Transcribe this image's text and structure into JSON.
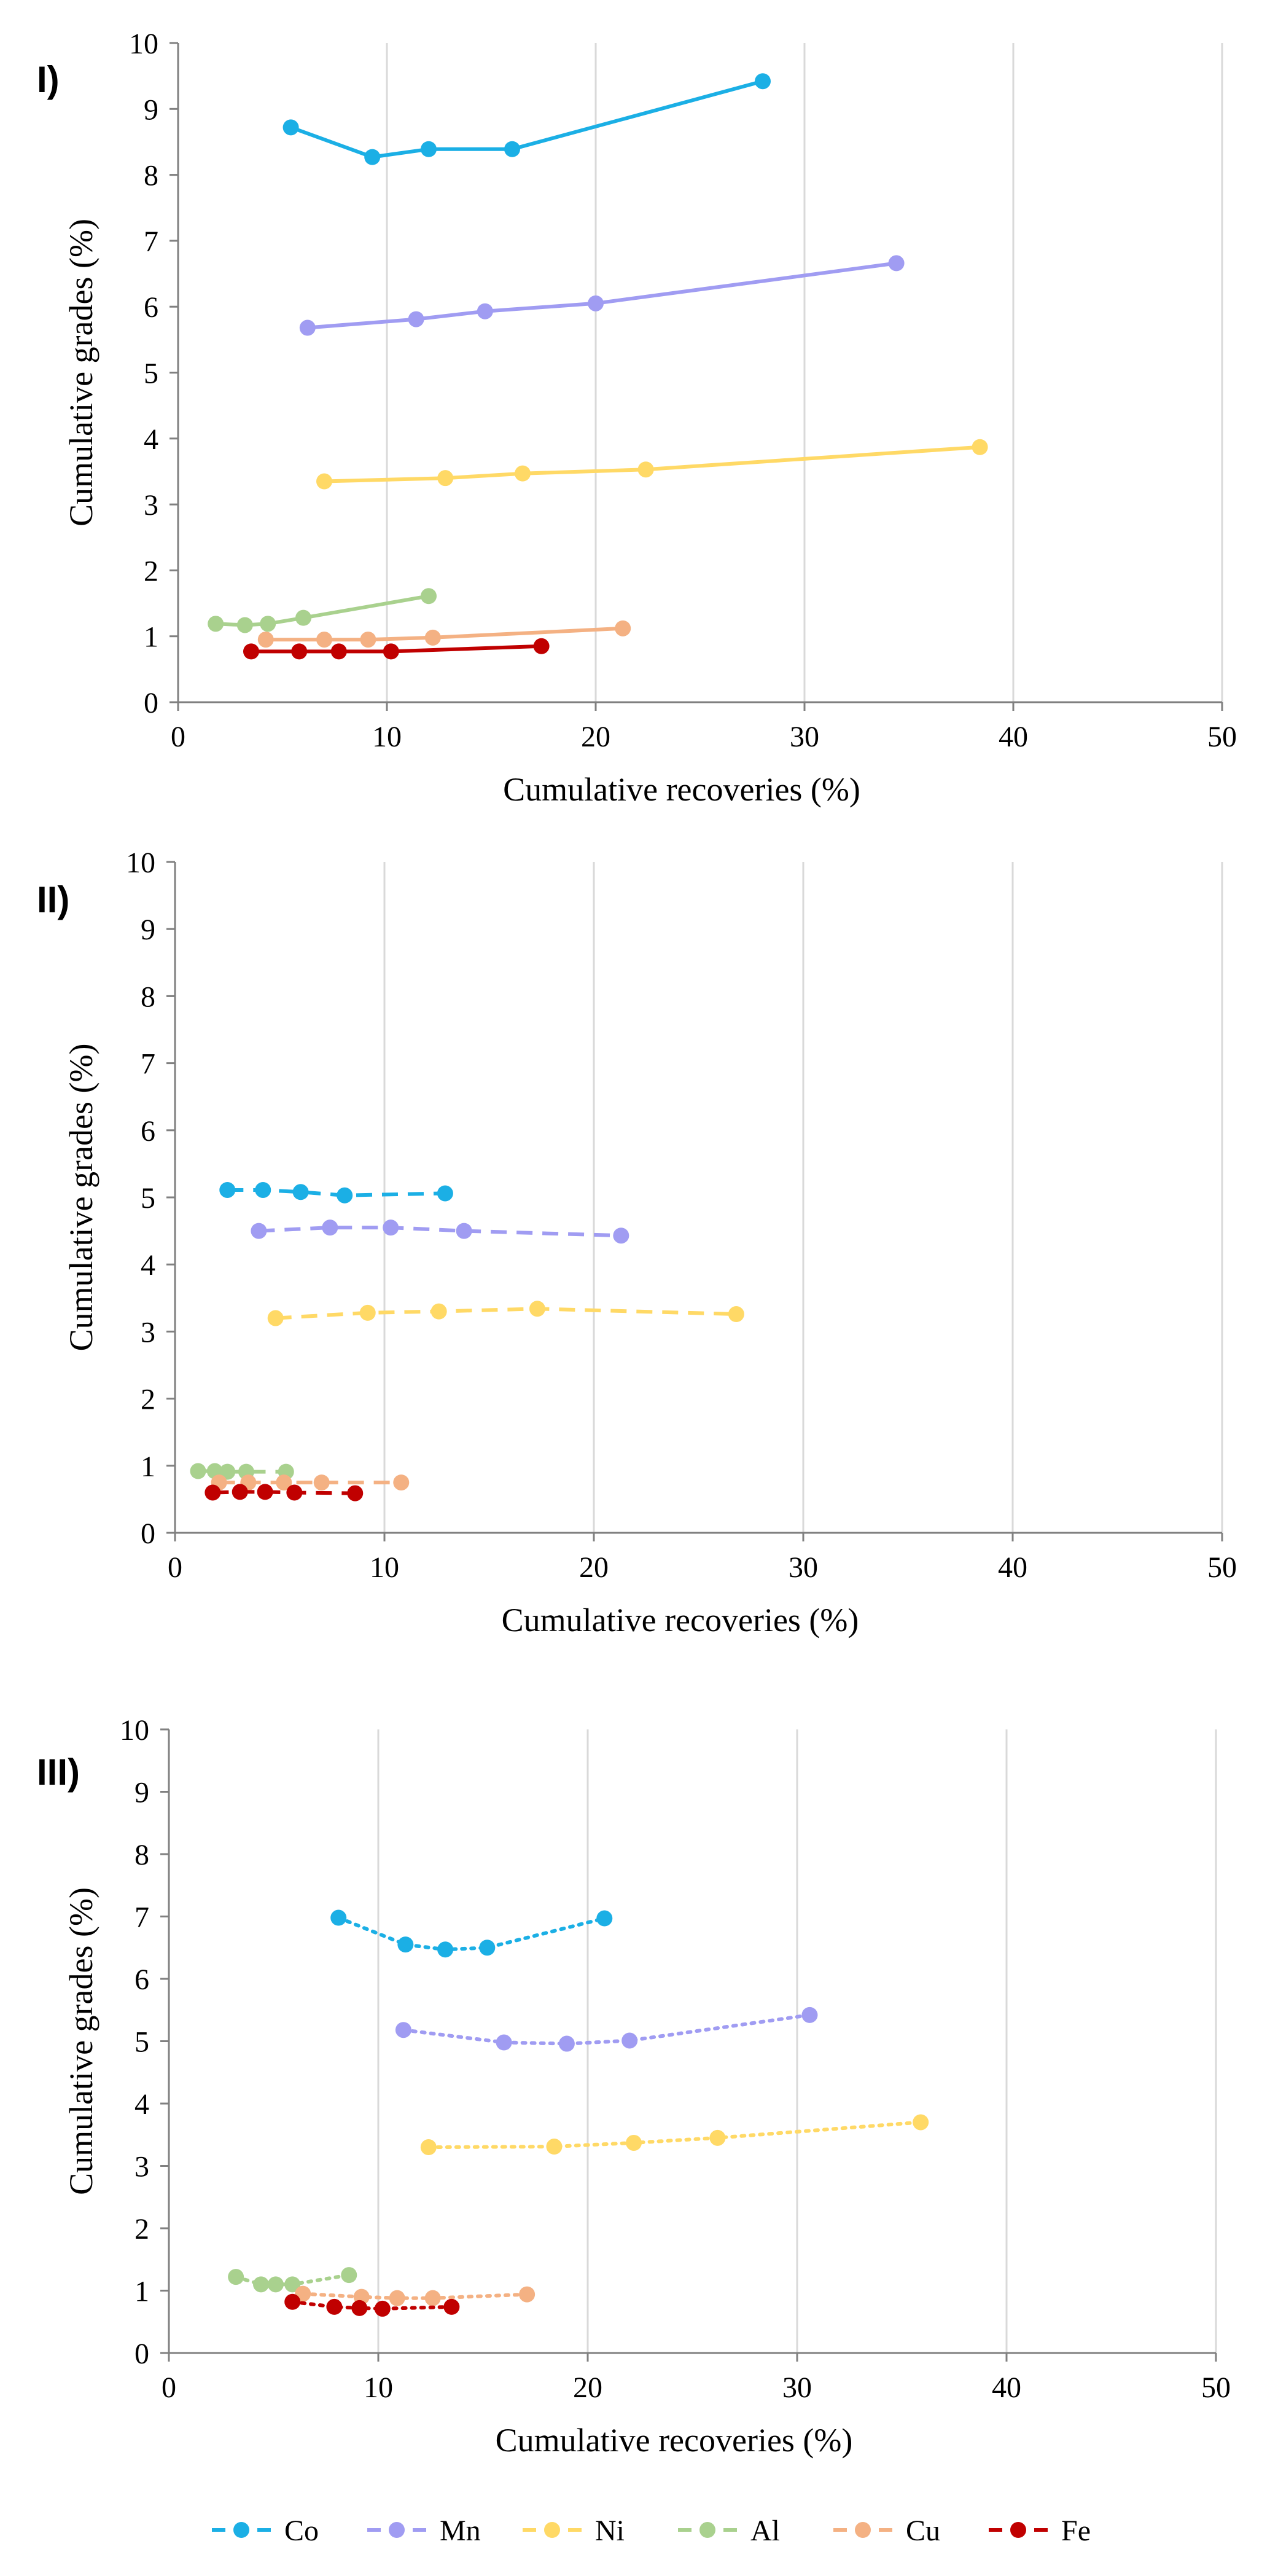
{
  "colors": {
    "Co": "#1BAFE5",
    "Mn": "#A09CF2",
    "Ni": "#FFD966",
    "Al": "#A9D18E",
    "Cu": "#F4B183",
    "Fe": "#C00000",
    "grid": "#D9D9D9",
    "axis": "#808080",
    "text": "#000000"
  },
  "legend": {
    "entries": [
      "Co",
      "Mn",
      "Ni",
      "Al",
      "Cu",
      "Fe"
    ],
    "placement": "bottom-center"
  },
  "chart_data": [
    {
      "type": "line",
      "panel_label": "I)",
      "line_style": "solid",
      "xlabel": "Cumulative recoveries (%)",
      "ylabel": "Cumulative grades (%)",
      "xlim": [
        0,
        50
      ],
      "ylim": [
        0,
        10
      ],
      "xticks": [
        "0",
        "10",
        "20",
        "30",
        "40",
        "50"
      ],
      "yticks": [
        "0",
        "1",
        "2",
        "3",
        "4",
        "5",
        "6",
        "7",
        "8",
        "9",
        "10"
      ],
      "grid": "vertical",
      "series": [
        {
          "name": "Co",
          "x": [
            5.4,
            9.3,
            12.0,
            16.0,
            28.0
          ],
          "y": [
            8.72,
            8.27,
            8.39,
            8.39,
            9.42
          ]
        },
        {
          "name": "Mn",
          "x": [
            6.2,
            11.4,
            14.7,
            20.0,
            34.4
          ],
          "y": [
            5.68,
            5.81,
            5.93,
            6.05,
            6.66
          ]
        },
        {
          "name": "Ni",
          "x": [
            7.0,
            12.8,
            16.5,
            22.4,
            38.4
          ],
          "y": [
            3.35,
            3.4,
            3.47,
            3.53,
            3.87
          ]
        },
        {
          "name": "Al",
          "x": [
            1.8,
            3.2,
            4.3,
            6.0,
            12.0
          ],
          "y": [
            1.19,
            1.17,
            1.19,
            1.28,
            1.61
          ]
        },
        {
          "name": "Cu",
          "x": [
            4.2,
            7.0,
            9.1,
            12.2,
            21.3
          ],
          "y": [
            0.95,
            0.95,
            0.95,
            0.98,
            1.12
          ]
        },
        {
          "name": "Fe",
          "x": [
            3.5,
            5.8,
            7.7,
            10.2,
            17.4
          ],
          "y": [
            0.77,
            0.77,
            0.77,
            0.77,
            0.85
          ]
        }
      ]
    },
    {
      "type": "line",
      "panel_label": "II)",
      "line_style": "dashed",
      "xlabel": "Cumulative recoveries (%)",
      "ylabel": "Cumulative grades (%)",
      "xlim": [
        0,
        50
      ],
      "ylim": [
        0,
        10
      ],
      "xticks": [
        "0",
        "10",
        "20",
        "30",
        "40",
        "50"
      ],
      "yticks": [
        "0",
        "1",
        "2",
        "3",
        "4",
        "5",
        "6",
        "7",
        "8",
        "9",
        "10"
      ],
      "grid": "vertical",
      "series": [
        {
          "name": "Co",
          "x": [
            2.5,
            4.2,
            6.0,
            8.1,
            12.9
          ],
          "y": [
            5.11,
            5.11,
            5.08,
            5.03,
            5.06
          ]
        },
        {
          "name": "Mn",
          "x": [
            4.0,
            7.4,
            10.3,
            13.8,
            21.3
          ],
          "y": [
            4.5,
            4.55,
            4.55,
            4.5,
            4.43
          ]
        },
        {
          "name": "Ni",
          "x": [
            4.8,
            9.2,
            12.6,
            17.3,
            26.8
          ],
          "y": [
            3.2,
            3.28,
            3.3,
            3.34,
            3.26
          ]
        },
        {
          "name": "Al",
          "x": [
            1.1,
            1.9,
            2.5,
            3.4,
            5.3
          ],
          "y": [
            0.92,
            0.92,
            0.91,
            0.91,
            0.91
          ]
        },
        {
          "name": "Cu",
          "x": [
            2.1,
            3.5,
            5.2,
            7.0,
            10.8
          ],
          "y": [
            0.75,
            0.75,
            0.75,
            0.75,
            0.75
          ]
        },
        {
          "name": "Fe",
          "x": [
            1.8,
            3.1,
            4.3,
            5.7,
            8.6
          ],
          "y": [
            0.6,
            0.61,
            0.61,
            0.6,
            0.59
          ]
        }
      ]
    },
    {
      "type": "line",
      "panel_label": "III)",
      "line_style": "dotted",
      "xlabel": "Cumulative recoveries (%)",
      "ylabel": "Cumulative grades (%)",
      "xlim": [
        0,
        50
      ],
      "ylim": [
        0,
        10
      ],
      "xticks": [
        "0",
        "10",
        "20",
        "30",
        "40",
        "50"
      ],
      "yticks": [
        "0",
        "1",
        "2",
        "3",
        "4",
        "5",
        "6",
        "7",
        "8",
        "9",
        "10"
      ],
      "grid": "vertical",
      "series": [
        {
          "name": "Co",
          "x": [
            8.1,
            11.3,
            13.2,
            15.2,
            20.8
          ],
          "y": [
            6.98,
            6.55,
            6.47,
            6.5,
            6.97
          ]
        },
        {
          "name": "Mn",
          "x": [
            11.2,
            16.0,
            19.0,
            22.0,
            30.6
          ],
          "y": [
            5.18,
            4.98,
            4.96,
            5.01,
            5.42
          ]
        },
        {
          "name": "Ni",
          "x": [
            12.4,
            18.4,
            22.2,
            26.2,
            35.9
          ],
          "y": [
            3.3,
            3.31,
            3.37,
            3.45,
            3.7
          ]
        },
        {
          "name": "Al",
          "x": [
            3.2,
            4.4,
            5.1,
            5.9,
            8.6
          ],
          "y": [
            1.22,
            1.1,
            1.1,
            1.1,
            1.25
          ]
        },
        {
          "name": "Cu",
          "x": [
            6.4,
            9.2,
            10.9,
            12.6,
            17.1
          ],
          "y": [
            0.95,
            0.9,
            0.88,
            0.88,
            0.94
          ]
        },
        {
          "name": "Fe",
          "x": [
            5.9,
            7.9,
            9.1,
            10.2,
            13.5
          ],
          "y": [
            0.82,
            0.74,
            0.72,
            0.71,
            0.74
          ]
        }
      ]
    }
  ]
}
